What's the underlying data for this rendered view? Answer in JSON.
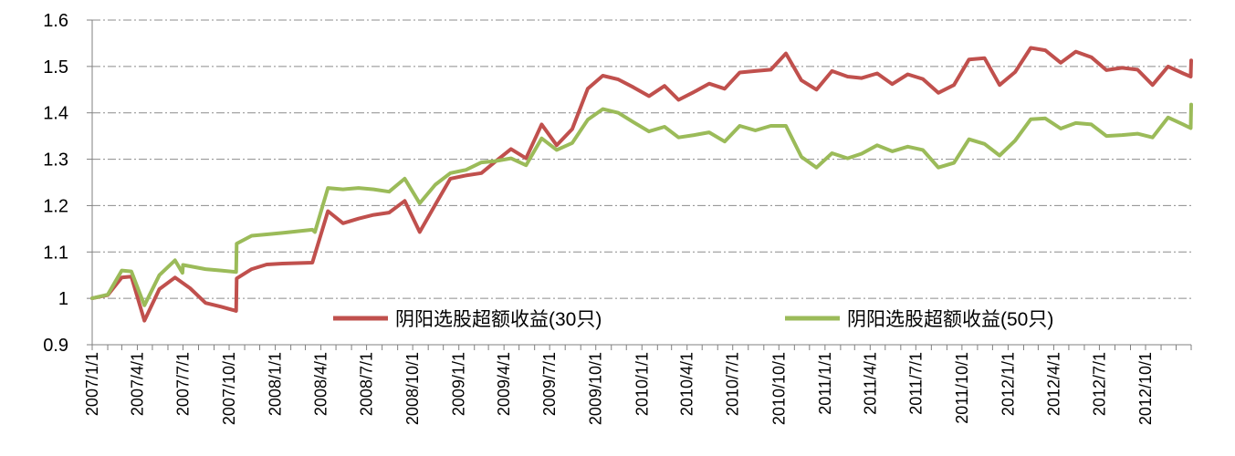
{
  "chart_data": {
    "type": "line",
    "title": "",
    "xlabel": "",
    "ylabel": "",
    "ylim": [
      0.9,
      1.6
    ],
    "yticks": [
      "0.9",
      "1",
      "1.1",
      "1.2",
      "1.3",
      "1.4",
      "1.5",
      "1.6"
    ],
    "grid": "horizontal dash-dot",
    "legend_position": "inside-bottom",
    "x_range": [
      "2007/1/1",
      "2012/12/31"
    ],
    "x_tick_labels": [
      "2007/1/1",
      "2007/4/1",
      "2007/7/1",
      "2007/10/1",
      "2008/1/1",
      "2008/4/1",
      "2008/7/1",
      "2008/10/1",
      "2009/1/1",
      "2009/4/1",
      "2009/7/1",
      "2009/10/1",
      "2010/1/1",
      "2010/4/1",
      "2010/7/1",
      "2010/10/1",
      "2011/1/1",
      "2011/4/1",
      "2011/7/1",
      "2011/10/1",
      "2012/1/1",
      "2012/4/1",
      "2012/7/1",
      "2012/10/1"
    ],
    "series": [
      {
        "name": "阴阳选股超额收益(30只)",
        "color": "#c0504d",
        "points": [
          [
            "2007/1/1",
            1.0
          ],
          [
            "2007/2/1",
            1.007
          ],
          [
            "2007/3/1",
            1.045
          ],
          [
            "2007/3/20",
            1.047
          ],
          [
            "2007/4/15",
            0.952
          ],
          [
            "2007/5/15",
            1.02
          ],
          [
            "2007/6/15",
            1.045
          ],
          [
            "2007/7/15",
            1.022
          ],
          [
            "2007/8/15",
            0.99
          ],
          [
            "2007/9/15",
            0.982
          ],
          [
            "2007/10/15",
            0.973
          ],
          [
            "2007/10/16",
            1.043
          ],
          [
            "2007/11/15",
            1.063
          ],
          [
            "2007/12/15",
            1.073
          ],
          [
            "2008/1/15",
            1.075
          ],
          [
            "2008/3/15",
            1.077
          ],
          [
            "2008/4/15",
            1.188
          ],
          [
            "2008/5/15",
            1.162
          ],
          [
            "2008/6/15",
            1.172
          ],
          [
            "2008/7/15",
            1.18
          ],
          [
            "2008/8/15",
            1.185
          ],
          [
            "2008/9/15",
            1.21
          ],
          [
            "2008/10/15",
            1.143
          ],
          [
            "2008/11/15",
            1.202
          ],
          [
            "2008/12/15",
            1.258
          ],
          [
            "2009/1/15",
            1.265
          ],
          [
            "2009/2/15",
            1.27
          ],
          [
            "2009/3/15",
            1.295
          ],
          [
            "2009/4/15",
            1.322
          ],
          [
            "2009/5/15",
            1.302
          ],
          [
            "2009/6/15",
            1.375
          ],
          [
            "2009/7/15",
            1.33
          ],
          [
            "2009/8/15",
            1.365
          ],
          [
            "2009/9/15",
            1.452
          ],
          [
            "2009/10/15",
            1.48
          ],
          [
            "2009/11/15",
            1.472
          ],
          [
            "2009/12/15",
            1.455
          ],
          [
            "2010/1/15",
            1.436
          ],
          [
            "2010/2/15",
            1.458
          ],
          [
            "2010/3/15",
            1.428
          ],
          [
            "2010/4/15",
            1.445
          ],
          [
            "2010/5/15",
            1.463
          ],
          [
            "2010/6/15",
            1.452
          ],
          [
            "2010/7/15",
            1.487
          ],
          [
            "2010/8/15",
            1.49
          ],
          [
            "2010/9/15",
            1.493
          ],
          [
            "2010/10/15",
            1.528
          ],
          [
            "2010/11/15",
            1.47
          ],
          [
            "2010/12/15",
            1.45
          ],
          [
            "2011/1/15",
            1.49
          ],
          [
            "2011/2/15",
            1.478
          ],
          [
            "2011/3/15",
            1.475
          ],
          [
            "2011/4/15",
            1.485
          ],
          [
            "2011/5/15",
            1.462
          ],
          [
            "2011/6/15",
            1.483
          ],
          [
            "2011/7/15",
            1.473
          ],
          [
            "2011/8/15",
            1.443
          ],
          [
            "2011/9/15",
            1.46
          ],
          [
            "2011/10/15",
            1.515
          ],
          [
            "2011/11/15",
            1.518
          ],
          [
            "2011/12/15",
            1.46
          ],
          [
            "2012/1/15",
            1.488
          ],
          [
            "2012/2/15",
            1.54
          ],
          [
            "2012/3/15",
            1.535
          ],
          [
            "2012/4/15",
            1.508
          ],
          [
            "2012/5/15",
            1.532
          ],
          [
            "2012/6/15",
            1.52
          ],
          [
            "2012/7/15",
            1.492
          ],
          [
            "2012/8/15",
            1.497
          ],
          [
            "2012/9/15",
            1.493
          ],
          [
            "2012/10/15",
            1.46
          ],
          [
            "2012/11/15",
            1.5
          ],
          [
            "2012/12/15",
            1.485
          ],
          [
            "2012/12/30",
            1.478
          ],
          [
            "2012/12/31",
            1.513
          ]
        ]
      },
      {
        "name": "阴阳选股超额收益(50只)",
        "color": "#9bbb59",
        "points": [
          [
            "2007/1/1",
            1.0
          ],
          [
            "2007/2/1",
            1.008
          ],
          [
            "2007/3/1",
            1.06
          ],
          [
            "2007/3/20",
            1.058
          ],
          [
            "2007/4/15",
            0.985
          ],
          [
            "2007/5/15",
            1.05
          ],
          [
            "2007/6/15",
            1.082
          ],
          [
            "2007/6/30",
            1.055
          ],
          [
            "2007/7/1",
            1.072
          ],
          [
            "2007/8/15",
            1.063
          ],
          [
            "2007/9/15",
            1.06
          ],
          [
            "2007/10/15",
            1.057
          ],
          [
            "2007/10/16",
            1.118
          ],
          [
            "2007/11/15",
            1.135
          ],
          [
            "2007/12/15",
            1.138
          ],
          [
            "2008/1/15",
            1.141
          ],
          [
            "2008/3/15",
            1.148
          ],
          [
            "2008/3/20",
            1.143
          ],
          [
            "2008/4/15",
            1.238
          ],
          [
            "2008/5/15",
            1.235
          ],
          [
            "2008/6/15",
            1.238
          ],
          [
            "2008/7/15",
            1.235
          ],
          [
            "2008/8/15",
            1.23
          ],
          [
            "2008/9/15",
            1.258
          ],
          [
            "2008/10/15",
            1.205
          ],
          [
            "2008/11/15",
            1.245
          ],
          [
            "2008/12/15",
            1.27
          ],
          [
            "2009/1/15",
            1.277
          ],
          [
            "2009/2/15",
            1.293
          ],
          [
            "2009/3/15",
            1.296
          ],
          [
            "2009/4/15",
            1.302
          ],
          [
            "2009/5/15",
            1.287
          ],
          [
            "2009/6/15",
            1.345
          ],
          [
            "2009/7/15",
            1.32
          ],
          [
            "2009/8/15",
            1.335
          ],
          [
            "2009/9/15",
            1.385
          ],
          [
            "2009/10/15",
            1.408
          ],
          [
            "2009/11/15",
            1.4
          ],
          [
            "2009/12/15",
            1.38
          ],
          [
            "2010/1/15",
            1.36
          ],
          [
            "2010/2/15",
            1.37
          ],
          [
            "2010/3/15",
            1.347
          ],
          [
            "2010/4/15",
            1.352
          ],
          [
            "2010/5/15",
            1.358
          ],
          [
            "2010/6/15",
            1.338
          ],
          [
            "2010/7/15",
            1.372
          ],
          [
            "2010/8/15",
            1.362
          ],
          [
            "2010/9/15",
            1.372
          ],
          [
            "2010/10/15",
            1.372
          ],
          [
            "2010/11/15",
            1.305
          ],
          [
            "2010/12/15",
            1.282
          ],
          [
            "2011/1/15",
            1.313
          ],
          [
            "2011/2/15",
            1.302
          ],
          [
            "2011/3/15",
            1.312
          ],
          [
            "2011/4/15",
            1.33
          ],
          [
            "2011/5/15",
            1.317
          ],
          [
            "2011/6/15",
            1.327
          ],
          [
            "2011/7/15",
            1.32
          ],
          [
            "2011/8/15",
            1.282
          ],
          [
            "2011/9/15",
            1.292
          ],
          [
            "2011/10/15",
            1.343
          ],
          [
            "2011/11/15",
            1.333
          ],
          [
            "2011/12/15",
            1.308
          ],
          [
            "2012/1/15",
            1.34
          ],
          [
            "2012/2/15",
            1.386
          ],
          [
            "2012/3/15",
            1.388
          ],
          [
            "2012/4/15",
            1.366
          ],
          [
            "2012/5/15",
            1.378
          ],
          [
            "2012/6/15",
            1.375
          ],
          [
            "2012/7/15",
            1.35
          ],
          [
            "2012/8/15",
            1.352
          ],
          [
            "2012/9/15",
            1.355
          ],
          [
            "2012/10/15",
            1.347
          ],
          [
            "2012/11/15",
            1.39
          ],
          [
            "2012/12/15",
            1.375
          ],
          [
            "2012/12/30",
            1.367
          ],
          [
            "2012/12/31",
            1.418
          ]
        ]
      }
    ]
  }
}
